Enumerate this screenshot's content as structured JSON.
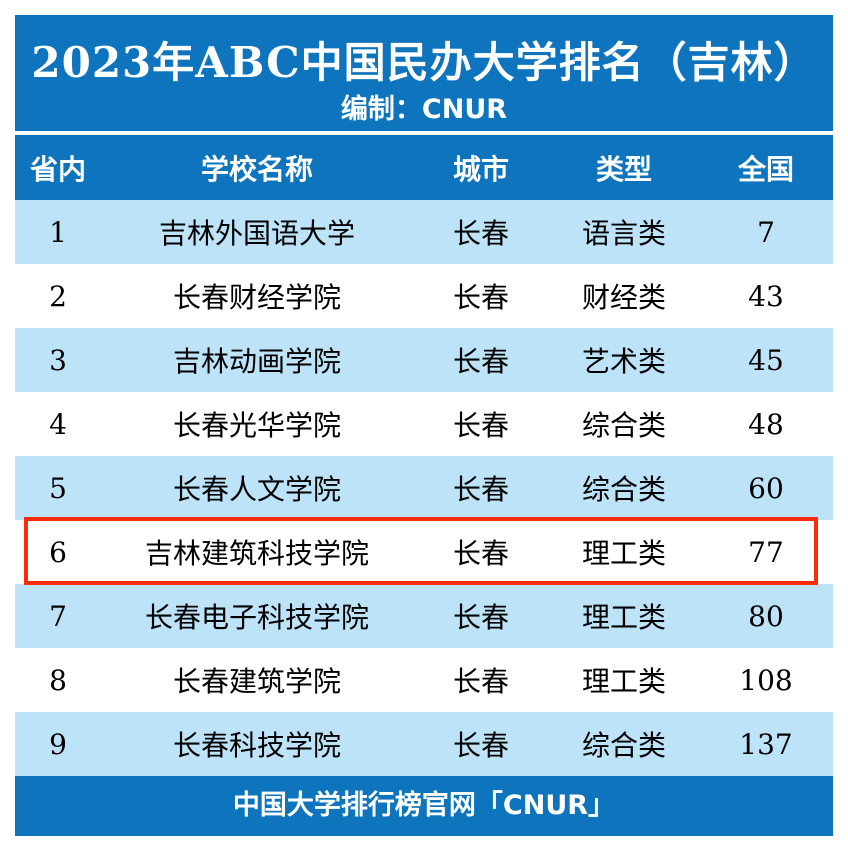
{
  "title": "2023年ABC中国民办大学排名（吉林）",
  "subtitle": "编制：CNUR",
  "headers": {
    "rank": "省内",
    "name": "学校名称",
    "city": "城市",
    "type": "类型",
    "national": "全国"
  },
  "rows": [
    {
      "rank": "1",
      "name": "吉林外国语大学",
      "city": "长春",
      "type": "语言类",
      "national": "7"
    },
    {
      "rank": "2",
      "name": "长春财经学院",
      "city": "长春",
      "type": "财经类",
      "national": "43"
    },
    {
      "rank": "3",
      "name": "吉林动画学院",
      "city": "长春",
      "type": "艺术类",
      "national": "45"
    },
    {
      "rank": "4",
      "name": "长春光华学院",
      "city": "长春",
      "type": "综合类",
      "national": "48"
    },
    {
      "rank": "5",
      "name": "长春人文学院",
      "city": "长春",
      "type": "综合类",
      "national": "60"
    },
    {
      "rank": "6",
      "name": "吉林建筑科技学院",
      "city": "长春",
      "type": "理工类",
      "national": "77"
    },
    {
      "rank": "7",
      "name": "长春电子科技学院",
      "city": "长春",
      "type": "理工类",
      "national": "80"
    },
    {
      "rank": "8",
      "name": "长春建筑学院",
      "city": "长春",
      "type": "理工类",
      "national": "108"
    },
    {
      "rank": "9",
      "name": "长春科技学院",
      "city": "长春",
      "type": "综合类",
      "national": "137"
    }
  ],
  "footer": "中国大学排行榜官网「CNUR」",
  "colors": {
    "header_bg": "#0e74bd",
    "row_alt_bg": "#bde3f8",
    "highlight": "#ff2a0a"
  }
}
